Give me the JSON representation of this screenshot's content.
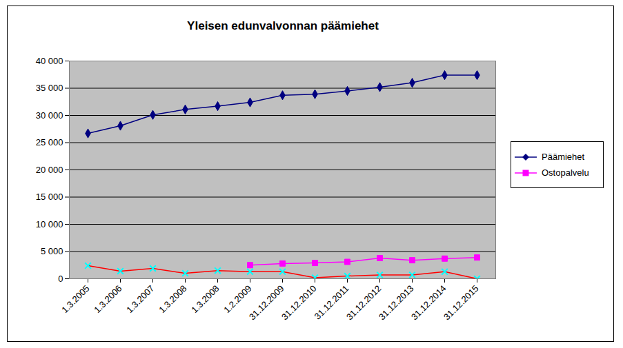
{
  "chart_data": {
    "type": "line",
    "title": "Yleisen edunvalvonnan päämiehet",
    "categories": [
      "1.3.2005",
      "1.3.2006",
      "1.3.2007",
      "1.3.2008",
      "1.3.2008",
      "1.2.2009",
      "31.12.2009",
      "31.12.2010",
      "31.12.2011",
      "31.12.2012",
      "31.12.2013",
      "31.12.2014",
      "31.12.2015"
    ],
    "series": [
      {
        "name": "Päämiehet",
        "color": "#000080",
        "marker": "diamond",
        "values": [
          26700,
          28100,
          30100,
          31100,
          31700,
          32400,
          33700,
          33900,
          34500,
          35200,
          36000,
          37400,
          37400
        ]
      },
      {
        "name": "Ostopalvelu",
        "color": "#ff00ff",
        "marker": "square",
        "values": [
          null,
          null,
          null,
          null,
          null,
          2500,
          2800,
          2900,
          3100,
          3800,
          3400,
          3700,
          3900
        ]
      },
      {
        "color": "#ff0000",
        "marker": "none",
        "values": [
          2400,
          1400,
          1900,
          1000,
          1500,
          1300,
          1300,
          200,
          500,
          700,
          700,
          1300,
          0
        ]
      },
      {
        "color": "#00ffff",
        "marker": "x",
        "line_style": "none",
        "values": [
          2400,
          1400,
          1900,
          1000,
          1500,
          1300,
          1300,
          200,
          500,
          700,
          700,
          1300,
          0
        ]
      }
    ],
    "ylim": [
      0,
      40000
    ],
    "yticks": [
      0,
      {
        "value": 5000,
        "label": "5 000"
      },
      {
        "value": 10000,
        "label": "10 000"
      },
      {
        "value": 15000,
        "label": "15 000"
      },
      {
        "value": 20000,
        "label": "20 000"
      },
      {
        "value": 25000,
        "label": "25 000"
      },
      {
        "value": 30000,
        "label": "30 000"
      },
      {
        "value": 35000,
        "label": "35 000"
      },
      {
        "value": 40000,
        "label": "40 000"
      }
    ],
    "grid": true,
    "legend": "right"
  }
}
